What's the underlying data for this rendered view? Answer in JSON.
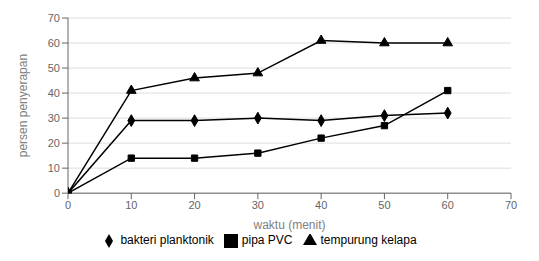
{
  "chart_data": {
    "type": "line",
    "x": [
      0,
      10,
      20,
      30,
      40,
      50,
      60
    ],
    "series": [
      {
        "name": "bakteri planktonik",
        "color": "#000000",
        "marker": "diamond",
        "values": [
          0,
          29,
          29,
          30,
          29,
          31,
          32
        ]
      },
      {
        "name": "pipa PVC",
        "color": "#000000",
        "marker": "square",
        "values": [
          0,
          14,
          14,
          16,
          22,
          27,
          41
        ]
      },
      {
        "name": "tempurung kelapa",
        "color": "#000000",
        "marker": "triangle",
        "values": [
          0,
          41,
          46,
          48,
          61,
          60,
          60
        ]
      }
    ],
    "xlim": [
      0,
      70
    ],
    "ylim": [
      0,
      70
    ],
    "xticks": [
      0,
      10,
      20,
      30,
      40,
      50,
      60,
      70
    ],
    "yticks": [
      0,
      10,
      20,
      30,
      40,
      50,
      60,
      70
    ],
    "xlabel": "waktu (menit)",
    "ylabel": "persen penyerapan",
    "grid": true,
    "legend": "bottom"
  }
}
